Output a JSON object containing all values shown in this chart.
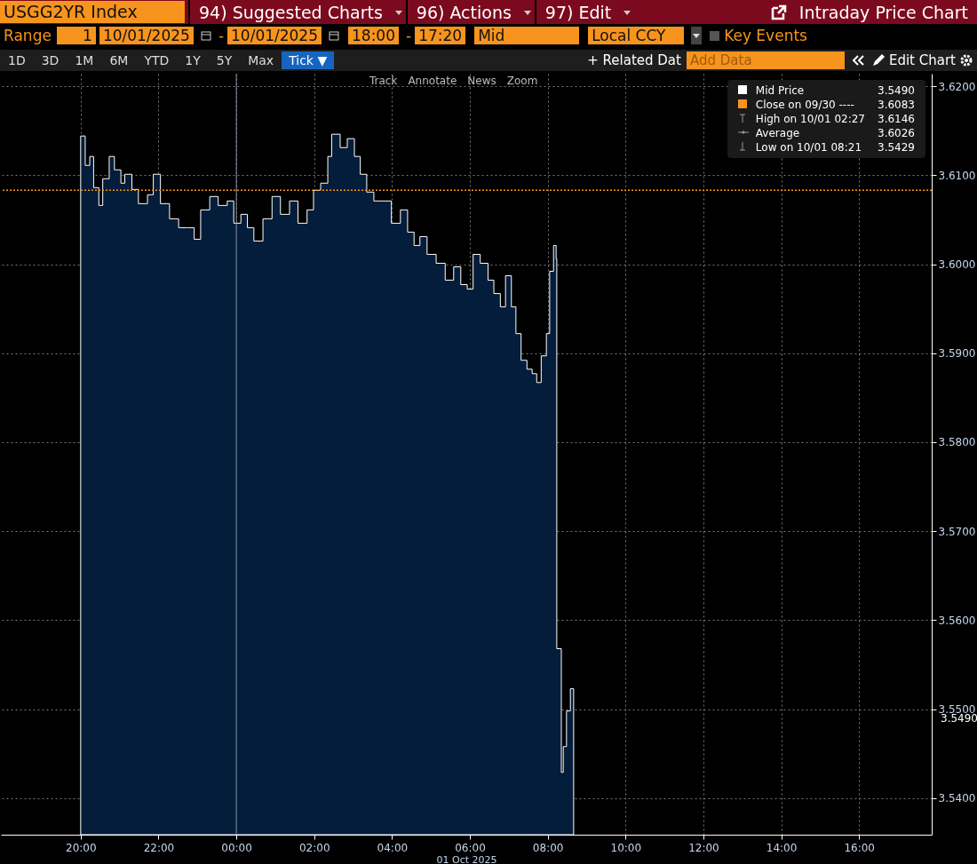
{
  "chart_data": {
    "type": "area",
    "title": "USGG2YR Index",
    "subtitle": "Intraday Price Chart",
    "xlabel": "01 Oct 2025",
    "x": [
      "2025-09-30T20:00",
      "2025-09-30T20:07",
      "2025-09-30T20:14",
      "2025-09-30T20:20",
      "2025-09-30T20:28",
      "2025-09-30T20:34",
      "2025-09-30T20:44",
      "2025-09-30T20:52",
      "2025-09-30T21:02",
      "2025-09-30T21:08",
      "2025-09-30T21:19",
      "2025-09-30T21:29",
      "2025-09-30T21:43",
      "2025-09-30T21:52",
      "2025-09-30T22:03",
      "2025-09-30T22:17",
      "2025-09-30T22:31",
      "2025-09-30T22:44",
      "2025-09-30T22:55",
      "2025-09-30T23:05",
      "2025-09-30T23:19",
      "2025-09-30T23:32",
      "2025-09-30T23:46",
      "2025-09-30T23:56",
      "2025-10-01T00:07",
      "2025-10-01T00:17",
      "2025-10-01T00:27",
      "2025-10-01T00:41",
      "2025-10-01T00:55",
      "2025-10-01T01:08",
      "2025-10-01T01:22",
      "2025-10-01T01:35",
      "2025-10-01T01:49",
      "2025-10-01T01:59",
      "2025-10-01T02:10",
      "2025-10-01T02:21",
      "2025-10-01T02:27",
      "2025-10-01T02:40",
      "2025-10-01T02:51",
      "2025-10-01T03:02",
      "2025-10-01T03:11",
      "2025-10-01T03:21",
      "2025-10-01T03:32",
      "2025-10-01T03:46",
      "2025-10-01T03:59",
      "2025-10-01T04:13",
      "2025-10-01T04:24",
      "2025-10-01T04:34",
      "2025-10-01T04:43",
      "2025-10-01T04:54",
      "2025-10-01T05:08",
      "2025-10-01T05:22",
      "2025-10-01T05:35",
      "2025-10-01T05:46",
      "2025-10-01T05:56",
      "2025-10-01T06:05",
      "2025-10-01T06:16",
      "2025-10-01T06:28",
      "2025-10-01T06:37",
      "2025-10-01T06:47",
      "2025-10-01T06:55",
      "2025-10-01T07:04",
      "2025-10-01T07:11",
      "2025-10-01T07:19",
      "2025-10-01T07:28",
      "2025-10-01T07:36",
      "2025-10-01T07:43",
      "2025-10-01T07:50",
      "2025-10-01T07:58",
      "2025-10-01T08:03",
      "2025-10-01T08:09",
      "2025-10-01T08:13",
      "2025-10-01T08:14",
      "2025-10-01T08:21",
      "2025-10-01T08:24",
      "2025-10-01T08:29",
      "2025-10-01T08:35",
      "2025-10-01T08:40"
    ],
    "series": [
      {
        "name": "Mid Price",
        "color": "#041d3b",
        "values": [
          3.6144,
          3.6111,
          3.6121,
          3.6086,
          3.6066,
          3.6096,
          3.6121,
          3.6106,
          3.6091,
          3.6101,
          3.6084,
          3.6068,
          3.6078,
          3.6101,
          3.6068,
          3.6051,
          3.6041,
          3.6041,
          3.6028,
          3.6061,
          3.6076,
          3.6066,
          3.6071,
          3.6046,
          3.6056,
          3.6041,
          3.6026,
          3.6051,
          3.6076,
          3.6056,
          3.6071,
          3.6046,
          3.6061,
          3.6083,
          3.6091,
          3.6121,
          3.6146,
          3.6131,
          3.6141,
          3.6121,
          3.6101,
          3.6081,
          3.6071,
          3.6071,
          3.6046,
          3.6061,
          3.6036,
          3.6021,
          3.6031,
          3.6011,
          3.6001,
          3.5982,
          3.5997,
          3.5977,
          3.5972,
          3.6011,
          3.6001,
          3.5982,
          3.5967,
          3.5952,
          3.5987,
          3.5952,
          3.5922,
          3.5892,
          3.5882,
          3.5877,
          3.5867,
          3.5897,
          3.5922,
          3.5992,
          3.6021,
          3.6006,
          3.5568,
          3.5429,
          3.5458,
          3.5498,
          3.5523,
          3.549
        ]
      }
    ],
    "xlim": [
      "2025-09-30T17:57",
      "2025-10-01T17:52"
    ],
    "xticks": [
      {
        "value": "2025-09-30T20:00",
        "label": "20:00"
      },
      {
        "value": "2025-09-30T22:00",
        "label": "22:00"
      },
      {
        "value": "2025-10-01T00:00",
        "label": "00:00"
      },
      {
        "value": "2025-10-01T02:00",
        "label": "02:00"
      },
      {
        "value": "2025-10-01T04:00",
        "label": "04:00"
      },
      {
        "value": "2025-10-01T06:00",
        "label": "06:00"
      },
      {
        "value": "2025-10-01T08:00",
        "label": "08:00"
      },
      {
        "value": "2025-10-01T10:00",
        "label": "10:00"
      },
      {
        "value": "2025-10-01T12:00",
        "label": "12:00"
      },
      {
        "value": "2025-10-01T14:00",
        "label": "14:00"
      },
      {
        "value": "2025-10-01T16:00",
        "label": "16:00"
      }
    ],
    "ylim": [
      3.5359,
      3.6214
    ],
    "yticks": [
      {
        "value": 3.54,
        "label": "3.5400"
      },
      {
        "value": 3.55,
        "label": "3.5500"
      },
      {
        "value": 3.56,
        "label": "3.5600"
      },
      {
        "value": 3.57,
        "label": "3.5700"
      },
      {
        "value": 3.58,
        "label": "3.5800"
      },
      {
        "value": 3.59,
        "label": "3.5900"
      },
      {
        "value": 3.6,
        "label": "3.6000"
      },
      {
        "value": 3.61,
        "label": "3.6100"
      },
      {
        "value": 3.62,
        "label": "3.6200"
      }
    ],
    "ref_lines": [
      {
        "axis": "y",
        "value": 3.6083,
        "label": "Close on 09/30",
        "color": "#f7941d",
        "line_style": "dotted"
      },
      {
        "axis": "x",
        "value": "2025-10-01T00:00",
        "label": null,
        "color": "#8591a3",
        "line_style": "solid"
      }
    ],
    "grid": true,
    "legend": "top right",
    "line_style": "solid",
    "annotations": [
      "3.5490",
      "---- 3.6083",
      "High on 10/01 02:27",
      "3.6146",
      "Average",
      "3.6026",
      "Low on 10/01 08:21",
      "3.5429",
      "94) Suggested Charts",
      "96) Actions",
      "97) Edit",
      "Range",
      "1",
      "10/01/2025",
      "-",
      "10/01/2025",
      "18:00",
      "-",
      "17:20",
      "Mid",
      "Local CCY",
      "Key Events",
      "1D",
      "3D",
      "1M",
      "6M",
      "YTD",
      "1Y",
      "5Y",
      "Max",
      "Tick ▼",
      "+ Related Dat",
      "Add Data",
      "Edit Chart",
      "Track",
      "Annotate",
      "News",
      "Zoom"
    ]
  }
}
